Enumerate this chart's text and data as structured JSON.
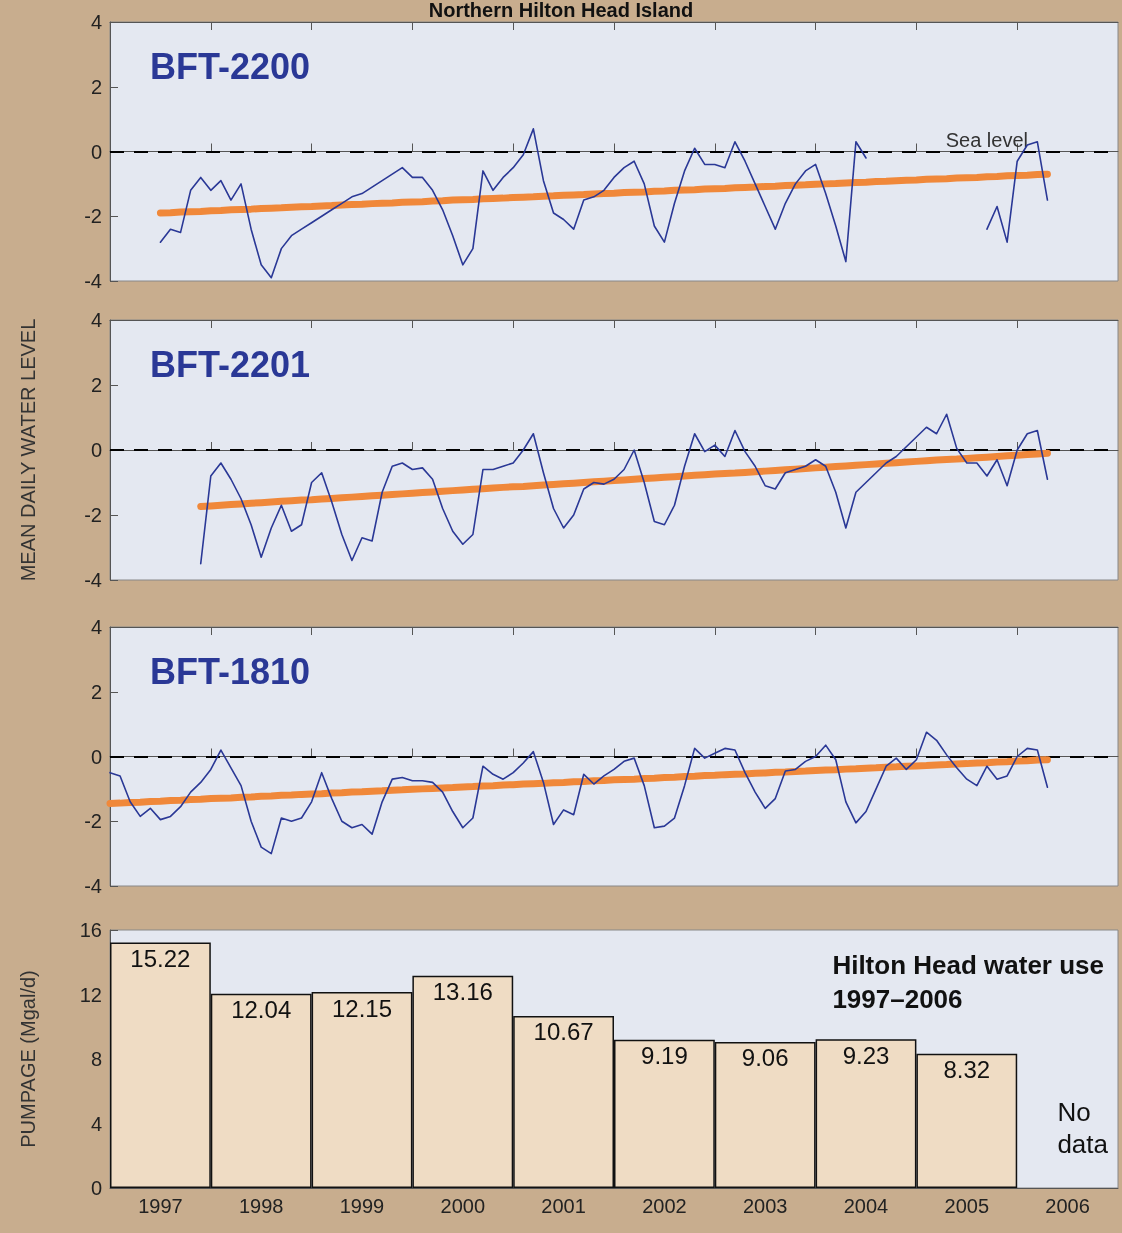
{
  "chart_data": [
    {
      "type": "line",
      "title": "Northern Hilton Head Island",
      "subtitle": "BFT-2200",
      "categories": [
        null,
        null,
        null,
        null,
        null,
        null,
        null,
        null,
        null,
        null,
        null,
        null,
        null,
        null,
        null,
        null,
        null,
        null,
        null,
        null,
        null,
        null,
        null,
        null,
        null,
        null,
        null,
        null,
        null,
        null,
        null,
        null,
        null,
        null,
        null,
        null,
        null,
        null,
        null,
        null,
        null,
        null,
        null,
        null,
        null,
        null,
        null,
        null,
        null,
        null,
        null,
        null,
        null,
        null,
        null,
        null,
        null,
        null,
        null,
        null,
        null,
        null,
        null,
        null,
        null,
        null,
        null,
        null,
        null,
        null,
        null,
        null,
        null,
        null,
        null,
        null,
        null,
        null,
        null,
        null,
        null,
        null,
        null,
        null,
        null,
        null,
        null,
        null,
        null,
        null,
        null,
        null,
        null,
        null,
        null,
        null,
        null,
        null,
        null,
        null,
        null
      ],
      "ylim": [
        -4,
        4
      ],
      "yticks": [
        -4,
        -2,
        0,
        2,
        4
      ],
      "tick_labels": "y",
      "marker": "none",
      "ref_lines": [
        {
          "axis": "y",
          "value": 0,
          "label": "Sea level",
          "color": "#000000",
          "line_style": "dashed"
        }
      ],
      "series": [
        {
          "color": "#f0883a",
          "values": [
            null,
            null,
            null,
            null,
            null,
            -1.9,
            -1.89,
            -1.87,
            -1.86,
            -1.85,
            -1.83,
            -1.82,
            -1.8,
            -1.79,
            -1.78,
            -1.76,
            -1.75,
            -1.74,
            -1.72,
            -1.71,
            -1.7,
            -1.68,
            -1.67,
            -1.65,
            -1.64,
            -1.63,
            -1.61,
            -1.6,
            -1.59,
            -1.57,
            -1.56,
            -1.55,
            -1.53,
            -1.52,
            -1.5,
            -1.49,
            -1.48,
            -1.46,
            -1.45,
            -1.44,
            -1.42,
            -1.41,
            -1.4,
            -1.38,
            -1.37,
            -1.35,
            -1.34,
            -1.33,
            -1.31,
            -1.3,
            -1.29,
            -1.27,
            -1.26,
            -1.25,
            -1.23,
            -1.22,
            -1.2,
            -1.19,
            -1.18,
            -1.16,
            -1.15,
            -1.14,
            -1.12,
            -1.11,
            -1.1,
            -1.08,
            -1.07,
            -1.05,
            -1.04,
            -1.03,
            -1.01,
            -1.0,
            -0.99,
            -0.97,
            -0.96,
            -0.95,
            -0.93,
            -0.92,
            -0.9,
            -0.89,
            -0.88,
            -0.86,
            -0.85,
            -0.84,
            -0.82,
            -0.81,
            -0.8,
            -0.78,
            -0.77,
            -0.75,
            -0.74,
            -0.73,
            -0.71,
            -0.7,
            null,
            null,
            null,
            null,
            null,
            null,
            null
          ]
        },
        {
          "color": "#2a3896",
          "values": [
            null,
            null,
            null,
            null,
            null,
            -2.8,
            -2.4,
            -2.5,
            -1.2,
            -0.8,
            -1.2,
            -0.9,
            -1.5,
            -1.0,
            -2.4,
            -3.5,
            -3.9,
            -3.0,
            -2.6,
            -2.4,
            -2.2,
            -2.0,
            -1.8,
            -1.6,
            -1.4,
            -1.3,
            -1.1,
            -0.9,
            -0.7,
            -0.5,
            -0.8,
            -0.8,
            -1.2,
            -1.8,
            -2.6,
            -3.5,
            -3.0,
            -0.6,
            -1.2,
            -0.8,
            -0.5,
            -0.1,
            0.7,
            -0.9,
            -1.9,
            -2.1,
            -2.4,
            -1.5,
            -1.4,
            -1.2,
            -0.8,
            -0.5,
            -0.3,
            -1.0,
            -2.3,
            -2.8,
            -1.6,
            -0.6,
            0.1,
            -0.4,
            -0.4,
            -0.5,
            0.3,
            -0.3,
            -1.0,
            -1.7,
            -2.4,
            -1.6,
            -1.0,
            -0.6,
            -0.4,
            -1.3,
            -2.3,
            -3.4,
            0.3,
            -0.2,
            null,
            null,
            null,
            null,
            null,
            null,
            null,
            null,
            null,
            null,
            null,
            -2.4,
            -1.7,
            -2.8,
            -0.3,
            0.2,
            0.3,
            -1.5,
            null,
            null,
            null,
            null,
            null,
            null,
            null
          ]
        }
      ]
    },
    {
      "type": "line",
      "subtitle": "BFT-2201",
      "ylabel": "MEAN DAILY WATER LEVEL",
      "categories": [
        null,
        null,
        null,
        null,
        null,
        null,
        null,
        null,
        null,
        null,
        null,
        null,
        null,
        null,
        null,
        null,
        null,
        null,
        null,
        null,
        null,
        null,
        null,
        null,
        null,
        null,
        null,
        null,
        null,
        null,
        null,
        null,
        null,
        null,
        null,
        null,
        null,
        null,
        null,
        null,
        null,
        null,
        null,
        null,
        null,
        null,
        null,
        null,
        null,
        null,
        null,
        null,
        null,
        null,
        null,
        null,
        null,
        null,
        null,
        null,
        null,
        null,
        null,
        null,
        null,
        null,
        null,
        null,
        null,
        null,
        null,
        null,
        null,
        null,
        null,
        null,
        null,
        null,
        null,
        null,
        null,
        null,
        null,
        null,
        null,
        null,
        null,
        null,
        null,
        null,
        null,
        null,
        null,
        null,
        null,
        null,
        null,
        null,
        null,
        null,
        null
      ],
      "ylim": [
        -4,
        4
      ],
      "yticks": [
        -4,
        -2,
        0,
        2,
        4
      ],
      "tick_labels": "y",
      "marker": "none",
      "ref_lines": [
        {
          "axis": "y",
          "value": 0,
          "color": "#000000",
          "line_style": "dashed"
        }
      ],
      "series": [
        {
          "color": "#f0883a",
          "values": [
            null,
            null,
            null,
            null,
            null,
            null,
            null,
            null,
            null,
            -1.74,
            -1.72,
            -1.7,
            -1.68,
            -1.66,
            -1.64,
            -1.62,
            -1.6,
            -1.58,
            -1.56,
            -1.54,
            -1.53,
            -1.51,
            -1.49,
            -1.47,
            -1.45,
            -1.43,
            -1.41,
            -1.39,
            -1.37,
            -1.35,
            -1.33,
            -1.31,
            -1.29,
            -1.27,
            -1.25,
            -1.23,
            -1.21,
            -1.19,
            -1.17,
            -1.15,
            -1.13,
            -1.12,
            -1.1,
            -1.08,
            -1.06,
            -1.04,
            -1.02,
            -1.0,
            -0.98,
            -0.96,
            -0.94,
            -0.92,
            -0.9,
            -0.88,
            -0.86,
            -0.84,
            -0.82,
            -0.8,
            -0.78,
            -0.76,
            -0.74,
            -0.72,
            -0.71,
            -0.69,
            -0.67,
            -0.65,
            -0.63,
            -0.61,
            -0.59,
            -0.57,
            -0.55,
            -0.53,
            -0.51,
            -0.49,
            -0.47,
            -0.45,
            -0.43,
            -0.41,
            -0.39,
            -0.37,
            -0.35,
            -0.33,
            -0.31,
            -0.29,
            -0.28,
            -0.26,
            -0.24,
            -0.22,
            -0.2,
            -0.18,
            -0.16,
            -0.14,
            -0.12,
            -0.1,
            null,
            null,
            null,
            null,
            null,
            null,
            null
          ]
        },
        {
          "color": "#2a3896",
          "values": [
            null,
            null,
            null,
            null,
            null,
            null,
            null,
            null,
            null,
            -3.5,
            -0.8,
            -0.4,
            -0.9,
            -1.5,
            -2.3,
            -3.3,
            -2.4,
            -1.7,
            -2.5,
            -2.3,
            -1.0,
            -0.7,
            -1.6,
            -2.6,
            -3.4,
            -2.7,
            -2.8,
            -1.3,
            -0.5,
            -0.4,
            -0.6,
            -0.55,
            -0.9,
            -1.8,
            -2.5,
            -2.9,
            -2.6,
            -0.6,
            -0.6,
            -0.5,
            -0.4,
            0.0,
            0.5,
            -0.7,
            -1.8,
            -2.4,
            -2.0,
            -1.2,
            -1.0,
            -1.05,
            -0.9,
            -0.6,
            0.0,
            -1.0,
            -2.2,
            -2.3,
            -1.7,
            -0.5,
            0.5,
            -0.05,
            0.15,
            -0.2,
            0.6,
            -0.05,
            -0.5,
            -1.1,
            -1.2,
            -0.7,
            -0.6,
            -0.5,
            -0.3,
            -0.5,
            -1.3,
            -2.4,
            -1.3,
            -1.0,
            -0.7,
            -0.4,
            -0.2,
            0.1,
            0.4,
            0.7,
            0.5,
            1.1,
            0.05,
            -0.4,
            -0.4,
            -0.8,
            -0.3,
            -1.1,
            0.0,
            0.5,
            0.6,
            -0.9,
            null,
            null,
            null,
            null,
            null,
            null,
            null
          ]
        }
      ]
    },
    {
      "type": "line",
      "subtitle": "BFT-1810",
      "categories": [
        null,
        null,
        null,
        null,
        null,
        null,
        null,
        null,
        null,
        null,
        null,
        null,
        null,
        null,
        null,
        null,
        null,
        null,
        null,
        null,
        null,
        null,
        null,
        null,
        null,
        null,
        null,
        null,
        null,
        null,
        null,
        null,
        null,
        null,
        null,
        null,
        null,
        null,
        null,
        null,
        null,
        null,
        null,
        null,
        null,
        null,
        null,
        null,
        null,
        null,
        null,
        null,
        null,
        null,
        null,
        null,
        null,
        null,
        null,
        null,
        null,
        null,
        null,
        null,
        null,
        null,
        null,
        null,
        null,
        null,
        null,
        null,
        null,
        null,
        null,
        null,
        null,
        null,
        null,
        null,
        null,
        null,
        null,
        null,
        null,
        null,
        null,
        null,
        null,
        null,
        null,
        null,
        null,
        null,
        null,
        null,
        null,
        null,
        null,
        null,
        null
      ],
      "ylim": [
        -4,
        4
      ],
      "yticks": [
        -4,
        -2,
        0,
        2,
        4
      ],
      "tick_labels": "y",
      "marker": "none",
      "ref_lines": [
        {
          "axis": "y",
          "value": 0,
          "color": "#000000",
          "line_style": "dashed"
        }
      ],
      "series": [
        {
          "color": "#f0883a",
          "values": [
            -1.45,
            -1.44,
            -1.42,
            -1.41,
            -1.39,
            -1.38,
            -1.36,
            -1.35,
            -1.33,
            -1.32,
            -1.3,
            -1.29,
            -1.28,
            -1.26,
            -1.25,
            -1.23,
            -1.22,
            -1.2,
            -1.19,
            -1.17,
            -1.16,
            -1.15,
            -1.13,
            -1.12,
            -1.1,
            -1.09,
            -1.07,
            -1.06,
            -1.04,
            -1.03,
            -1.01,
            -1.0,
            -0.99,
            -0.97,
            -0.96,
            -0.94,
            -0.93,
            -0.91,
            -0.9,
            -0.88,
            -0.87,
            -0.85,
            -0.84,
            -0.83,
            -0.81,
            -0.8,
            -0.78,
            -0.77,
            -0.75,
            -0.74,
            -0.72,
            -0.71,
            -0.7,
            -0.68,
            -0.67,
            -0.65,
            -0.64,
            -0.62,
            -0.61,
            -0.59,
            -0.58,
            -0.56,
            -0.55,
            -0.54,
            -0.52,
            -0.51,
            -0.49,
            -0.48,
            -0.46,
            -0.45,
            -0.43,
            -0.42,
            -0.41,
            -0.39,
            -0.38,
            -0.36,
            -0.35,
            -0.33,
            -0.32,
            -0.3,
            -0.29,
            -0.28,
            -0.26,
            -0.25,
            -0.23,
            -0.22,
            -0.2,
            -0.19,
            -0.17,
            -0.16,
            -0.14,
            -0.13,
            -0.11,
            -0.1,
            null,
            null,
            null,
            null,
            null,
            null,
            null
          ]
        },
        {
          "color": "#2a3896",
          "values": [
            -0.5,
            -0.6,
            -1.4,
            -1.85,
            -1.6,
            -1.95,
            -1.85,
            -1.55,
            -1.1,
            -0.8,
            -0.4,
            0.2,
            -0.35,
            -0.9,
            -2.0,
            -2.8,
            -3.0,
            -1.9,
            -2.0,
            -1.9,
            -1.4,
            -0.5,
            -1.3,
            -2.0,
            -2.2,
            -2.1,
            -2.4,
            -1.4,
            -0.7,
            -0.65,
            -0.75,
            -0.75,
            -0.8,
            -1.1,
            -1.7,
            -2.2,
            -1.9,
            -0.3,
            -0.55,
            -0.7,
            -0.5,
            -0.2,
            0.15,
            -0.8,
            -2.1,
            -1.65,
            -1.8,
            -0.55,
            -0.85,
            -0.6,
            -0.4,
            -0.15,
            -0.05,
            -0.9,
            -2.2,
            -2.15,
            -1.9,
            -0.9,
            0.25,
            -0.05,
            0.1,
            0.25,
            0.2,
            -0.5,
            -1.1,
            -1.6,
            -1.3,
            -0.45,
            -0.4,
            -0.15,
            0.0,
            0.35,
            -0.1,
            -1.4,
            -2.05,
            -1.7,
            -1.0,
            -0.3,
            -0.05,
            -0.4,
            -0.1,
            0.75,
            0.5,
            0.05,
            -0.35,
            -0.7,
            -0.9,
            -0.3,
            -0.7,
            -0.6,
            0.0,
            0.25,
            0.2,
            -0.95,
            null,
            null,
            null,
            null,
            null,
            null,
            null
          ]
        }
      ]
    },
    {
      "type": "bar",
      "title": "Hilton Head water use\n1997–2006",
      "ylabel": "PUMPAGE (Mgal/d)",
      "categories": [
        "1997",
        "1998",
        "1999",
        "2000",
        "2001",
        "2002",
        "2003",
        "2004",
        "2005",
        "2006"
      ],
      "ylim": [
        0,
        16
      ],
      "yticks": [
        0,
        4,
        8,
        12,
        16
      ],
      "data_labels": true,
      "annotations": [
        "No\ndata"
      ],
      "series": [
        {
          "color": "#efdcc4",
          "values": [
            15.22,
            12.04,
            12.15,
            13.16,
            10.67,
            9.19,
            9.06,
            9.23,
            8.32,
            null
          ]
        }
      ]
    }
  ]
}
